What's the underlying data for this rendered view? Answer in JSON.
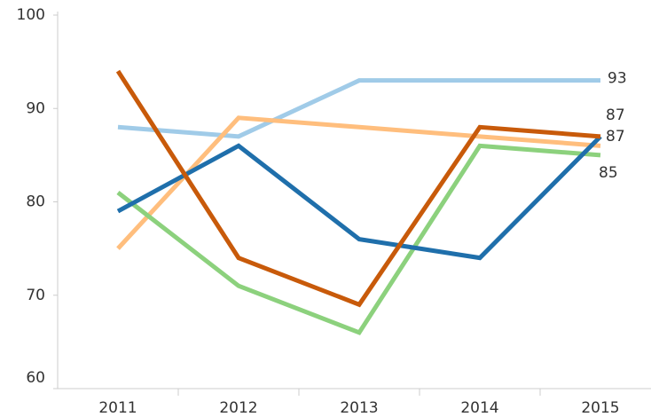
{
  "chart_data": {
    "type": "line",
    "categories": [
      "2011",
      "2012",
      "2013",
      "2014",
      "2015"
    ],
    "series": [
      {
        "color": "#a0cbe8",
        "values": [
          88,
          87,
          93,
          93,
          93
        ],
        "label_last": true
      },
      {
        "color": "#ffbe7d",
        "values": [
          75,
          89,
          88,
          87,
          86
        ],
        "label_last": false
      },
      {
        "color": "#8cd17d",
        "values": [
          81,
          71,
          66,
          86,
          85
        ],
        "label_last": true
      },
      {
        "color": "#1f6fab",
        "values": [
          79,
          86,
          76,
          74,
          87
        ],
        "label_last": true
      },
      {
        "color": "#c85a0a",
        "values": [
          94,
          74,
          69,
          88,
          87
        ],
        "label_last": true
      }
    ],
    "ylim": [
      60,
      100
    ],
    "yticks": [
      60,
      70,
      80,
      90,
      100
    ],
    "grid": false
  }
}
